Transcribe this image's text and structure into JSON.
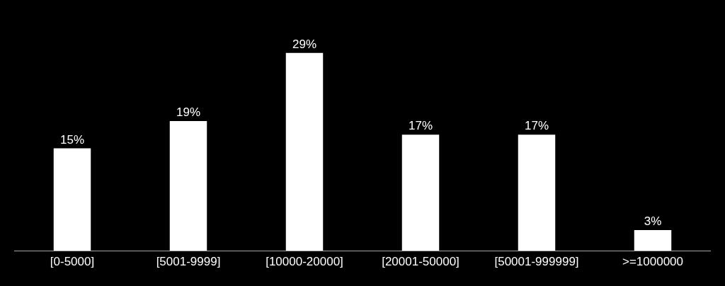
{
  "chart_data": {
    "type": "bar",
    "categories": [
      "[0-5000]",
      "[5001-9999]",
      "[10000-20000]",
      "[20001-50000]",
      "[50001-999999]",
      ">=1000000"
    ],
    "values": [
      15,
      19,
      29,
      17,
      17,
      3
    ],
    "value_labels": [
      "15%",
      "19%",
      "29%",
      "17%",
      "17%",
      "3%"
    ],
    "color": "#ffffff"
  }
}
